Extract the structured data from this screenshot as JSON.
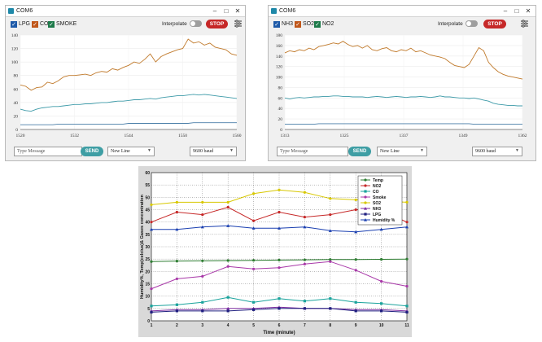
{
  "windows": [
    {
      "title": "COM6",
      "controls": [
        "–",
        "□",
        "✕"
      ],
      "checkboxes": [
        {
          "label": "LPG",
          "color": "#1e5aa8"
        },
        {
          "label": "CO",
          "color": "#c0571a"
        },
        {
          "label": "SMOKE",
          "color": "#1e7a4a"
        }
      ],
      "interpolate_label": "Interpolate",
      "interpolate_on": false,
      "stop_label": "STOP",
      "chart_data": {
        "type": "line",
        "x": [
          1520,
          1521,
          1522,
          1523,
          1524,
          1525,
          1526,
          1527,
          1528,
          1529,
          1530,
          1531,
          1532,
          1533,
          1534,
          1535,
          1536,
          1537,
          1538,
          1539,
          1540,
          1541,
          1542,
          1543,
          1544,
          1545,
          1546,
          1547,
          1548,
          1549,
          1550,
          1551,
          1552,
          1553,
          1554,
          1555,
          1556,
          1557,
          1558,
          1559,
          1560
        ],
        "xlim": [
          1520,
          1560
        ],
        "xticks": [
          "1520",
          "1532",
          "1544",
          "1550",
          "1560"
        ],
        "ylim": [
          0,
          140
        ],
        "yticks": [
          "0",
          "20",
          "40",
          "60",
          "80",
          "100",
          "120",
          "140"
        ],
        "series": [
          {
            "name": "CO",
            "color": "#c0792a",
            "values": [
              66,
              64,
              58,
              62,
              63,
              70,
              68,
              72,
              78,
              80,
              80,
              81,
              82,
              80,
              84,
              86,
              85,
              90,
              88,
              92,
              95,
              100,
              98,
              104,
              112,
              100,
              108,
              112,
              115,
              118,
              120,
              134,
              128,
              130,
              125,
              128,
              122,
              120,
              118,
              112,
              110
            ]
          },
          {
            "name": "LPG",
            "color": "#3d9aa8",
            "values": [
              30,
              28,
              27,
              30,
              32,
              33,
              34,
              34,
              35,
              36,
              37,
              37,
              38,
              38,
              39,
              40,
              40,
              41,
              42,
              42,
              43,
              44,
              44,
              45,
              46,
              45,
              47,
              48,
              49,
              50,
              50,
              51,
              52,
              51,
              52,
              51,
              50,
              49,
              48,
              47,
              46
            ]
          },
          {
            "name": "SMOKE",
            "color": "#4a7ea8",
            "values": [
              7,
              7,
              7,
              7,
              7,
              7,
              7,
              8,
              8,
              8,
              8,
              8,
              8,
              8,
              8,
              8,
              8,
              8,
              8,
              8,
              9,
              9,
              9,
              9,
              9,
              9,
              9,
              9,
              9,
              9,
              9,
              9,
              10,
              10,
              10,
              10,
              10,
              10,
              10,
              10,
              10
            ]
          }
        ]
      },
      "message_placeholder": "Type Message",
      "send_label": "SEND",
      "line_ending": "New Line",
      "baud": "9600 baud"
    },
    {
      "title": "COM6",
      "controls": [
        "–",
        "□",
        "✕"
      ],
      "checkboxes": [
        {
          "label": "NH3",
          "color": "#1e5aa8"
        },
        {
          "label": "SO2",
          "color": "#c0571a"
        },
        {
          "label": "NO2",
          "color": "#1e7a4a"
        }
      ],
      "interpolate_label": "Interpolate",
      "interpolate_on": false,
      "stop_label": "STOP",
      "chart_data": {
        "type": "line",
        "x": [
          1313,
          1314,
          1315,
          1316,
          1317,
          1318,
          1319,
          1320,
          1321,
          1322,
          1323,
          1324,
          1325,
          1326,
          1327,
          1328,
          1329,
          1330,
          1331,
          1332,
          1333,
          1334,
          1335,
          1336,
          1337,
          1338,
          1339,
          1340,
          1341,
          1342,
          1343,
          1344,
          1345,
          1346,
          1347,
          1348,
          1349,
          1350,
          1351,
          1352,
          1353,
          1354,
          1355,
          1356,
          1357,
          1358,
          1359,
          1360,
          1361,
          1362
        ],
        "xlim": [
          1313,
          1362
        ],
        "xticks": [
          "1313",
          "1325",
          "1337",
          "1349",
          "1362"
        ],
        "ylim": [
          0,
          180
        ],
        "yticks": [
          "0",
          "20",
          "40",
          "60",
          "80",
          "100",
          "120",
          "140",
          "160",
          "180"
        ],
        "series": [
          {
            "name": "SO2",
            "color": "#c0792a",
            "values": [
              146,
              150,
              148,
              152,
              150,
              155,
              152,
              158,
              160,
              162,
              165,
              163,
              168,
              162,
              158,
              160,
              155,
              160,
              152,
              150,
              154,
              156,
              150,
              148,
              152,
              150,
              155,
              148,
              150,
              146,
              142,
              140,
              138,
              135,
              128,
              122,
              120,
              118,
              124,
              140,
              156,
              150,
              128,
              118,
              110,
              105,
              102,
              100,
              98,
              96
            ]
          },
          {
            "name": "NO2",
            "color": "#3d9aa8",
            "values": [
              60,
              58,
              60,
              61,
              60,
              61,
              62,
              62,
              63,
              63,
              64,
              64,
              63,
              63,
              62,
              62,
              62,
              61,
              62,
              63,
              62,
              61,
              62,
              63,
              62,
              61,
              62,
              62,
              63,
              62,
              61,
              62,
              64,
              62,
              62,
              61,
              60,
              60,
              59,
              60,
              58,
              56,
              54,
              50,
              48,
              47,
              46,
              46,
              45,
              45
            ]
          },
          {
            "name": "NH3",
            "color": "#4a7ea8",
            "values": [
              10,
              10,
              10,
              10,
              10,
              10,
              10,
              11,
              11,
              11,
              11,
              11,
              11,
              11,
              11,
              11,
              11,
              11,
              11,
              11,
              11,
              11,
              11,
              11,
              11,
              11,
              11,
              11,
              11,
              11,
              11,
              11,
              11,
              11,
              11,
              11,
              11,
              11,
              11,
              10,
              10,
              10,
              10,
              10,
              10,
              10,
              10,
              10,
              10,
              10
            ]
          }
        ]
      },
      "message_placeholder": "Type Message",
      "send_label": "SEND",
      "line_ending": "New Line",
      "baud": "9600 baud"
    }
  ],
  "bottom_chart": {
    "chart_data": {
      "type": "line",
      "x": [
        1,
        2,
        3,
        4,
        5,
        6,
        7,
        8,
        9,
        10,
        11
      ],
      "xlabel": "Time (minute)",
      "ylabel": "Humidity%, Temp(celcius)& Gases concentration",
      "xlim": [
        1,
        11
      ],
      "ylim": [
        0,
        60
      ],
      "yticks": [
        "0",
        "5",
        "10",
        "15",
        "20",
        "25",
        "30",
        "35",
        "40",
        "45",
        "50",
        "55",
        "60"
      ],
      "xticks": [
        "1",
        "2",
        "3",
        "4",
        "5",
        "6",
        "7",
        "8",
        "9",
        "10",
        "11"
      ],
      "grid": true,
      "legend_position": "top-right",
      "series": [
        {
          "name": "Temp",
          "color": "#2e7d32",
          "marker": "circle",
          "values": [
            24,
            24.2,
            24.3,
            24.4,
            24.5,
            24.6,
            24.7,
            24.8,
            24.8,
            24.9,
            25
          ]
        },
        {
          "name": "NO2",
          "color": "#c62828",
          "marker": "circle",
          "values": [
            40,
            44,
            43,
            46,
            40.5,
            44,
            42,
            43,
            45,
            44.5,
            40
          ]
        },
        {
          "name": "CO",
          "color": "#1aa39c",
          "marker": "square",
          "values": [
            6,
            6.5,
            7.5,
            9.5,
            7.5,
            9,
            8,
            9,
            7.5,
            7,
            6
          ]
        },
        {
          "name": "Smoke",
          "color": "#a838a8",
          "marker": "circle",
          "values": [
            13,
            17,
            18,
            22,
            21,
            21.5,
            23,
            24,
            20.5,
            16,
            14
          ]
        },
        {
          "name": "SO2",
          "color": "#d8c800",
          "marker": "circle",
          "values": [
            47,
            48,
            48,
            48,
            51.5,
            53,
            52,
            49.5,
            49,
            48.5,
            48
          ]
        },
        {
          "name": "NH3",
          "color": "#7b2ba0",
          "marker": "triangle",
          "values": [
            4,
            4.5,
            4.5,
            5,
            5,
            5.5,
            5,
            5,
            4.5,
            4.5,
            4
          ]
        },
        {
          "name": "LPG",
          "color": "#202080",
          "marker": "square",
          "values": [
            3.5,
            4,
            4,
            4,
            4.5,
            5,
            5,
            5,
            4,
            4,
            3.5
          ]
        },
        {
          "name": "Humidity %",
          "color": "#1a3fb0",
          "marker": "triangle",
          "values": [
            37,
            37,
            38,
            38.5,
            37.5,
            37.5,
            38,
            36.5,
            36,
            37,
            38
          ]
        }
      ]
    }
  }
}
